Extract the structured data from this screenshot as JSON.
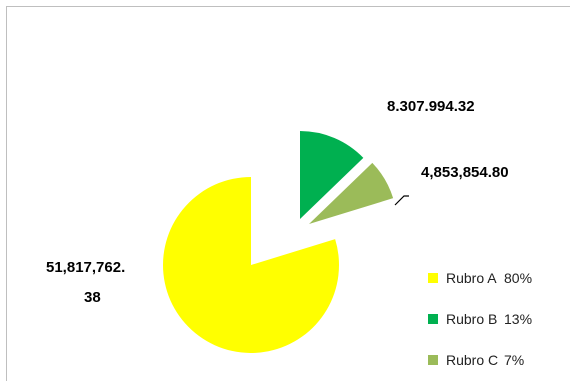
{
  "chart_data": {
    "type": "pie",
    "title": "",
    "exploded": true,
    "series": [
      {
        "name": "Rubro A",
        "value": 51817762.38,
        "value_label": "51,817,762.\n38",
        "percent_label": "80%",
        "color": "#FFFF00"
      },
      {
        "name": "Rubro B",
        "value": 8307994.32,
        "value_label": "8.307.994.32",
        "percent_label": "13%",
        "color": "#00B050"
      },
      {
        "name": "Rubro C",
        "value": 4853854.8,
        "value_label": "4,853,854.80",
        "percent_label": "7%",
        "color": "#9BBB59"
      }
    ],
    "legend_position": "bottom-right"
  }
}
